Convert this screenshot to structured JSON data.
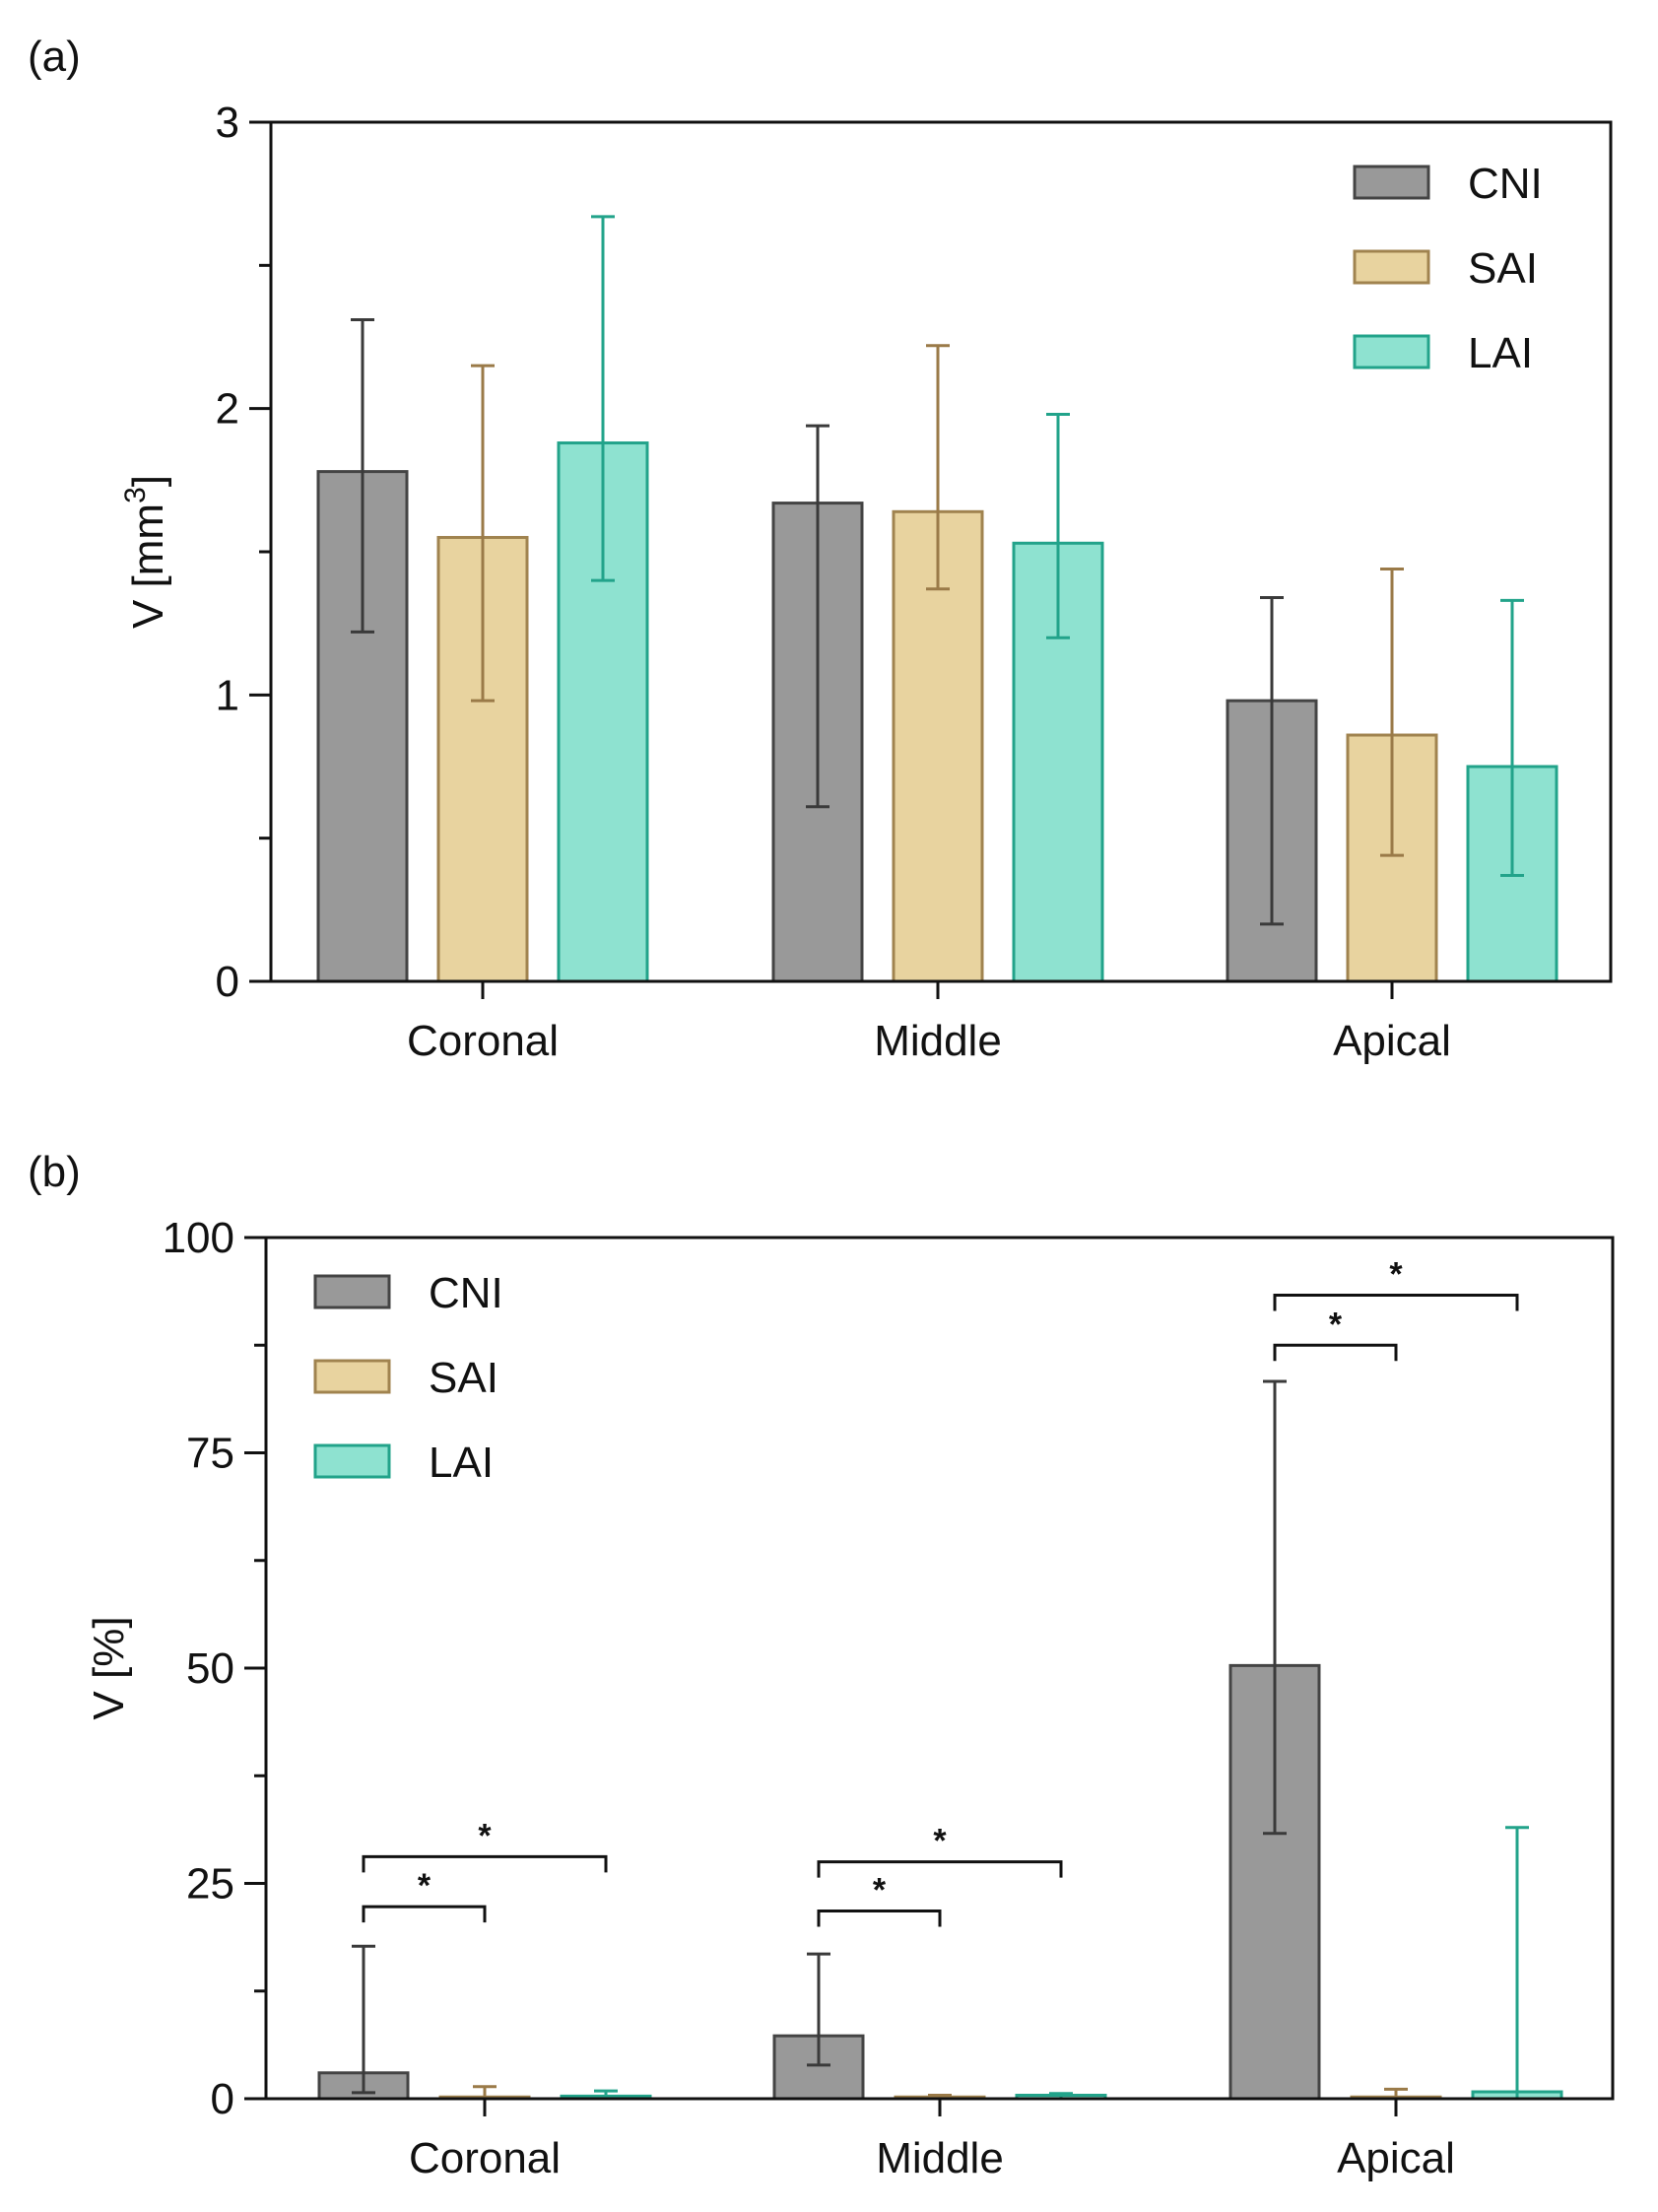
{
  "chart_data": [
    {
      "panel_label": "(a)",
      "type": "bar",
      "categories": [
        "Coronal",
        "Middle",
        "Apical"
      ],
      "ylabel": "V [mm³]",
      "ylabel_base": "V [mm",
      "ylabel_sup": "3",
      "ylabel_end": "]",
      "ylim": [
        0,
        3
      ],
      "yticks": [
        0,
        1,
        2,
        3
      ],
      "ytick_labels": [
        "0",
        "1",
        "2",
        "3"
      ],
      "legend_position": "top-right",
      "series": [
        {
          "name": "CNI",
          "fill": "#999999",
          "stroke": "#444444",
          "err_color": "#3a3a3a",
          "values": [
            1.78,
            1.67,
            0.98
          ],
          "err_low": [
            1.22,
            0.61,
            0.2
          ],
          "err_high": [
            2.31,
            1.94,
            1.34
          ]
        },
        {
          "name": "SAI",
          "fill": "#e8d39f",
          "stroke": "#a0834f",
          "err_color": "#9a7a48",
          "values": [
            1.55,
            1.64,
            0.86
          ],
          "err_low": [
            0.98,
            1.37,
            0.44
          ],
          "err_high": [
            2.15,
            2.22,
            1.44
          ]
        },
        {
          "name": "LAI",
          "fill": "#8ee2d0",
          "stroke": "#22a38a",
          "err_color": "#22a38a",
          "values": [
            1.88,
            1.53,
            0.75
          ],
          "err_low": [
            1.4,
            1.2,
            0.37
          ],
          "err_high": [
            2.67,
            1.98,
            1.33
          ]
        }
      ],
      "significance": []
    },
    {
      "panel_label": "(b)",
      "type": "bar",
      "categories": [
        "Coronal",
        "Middle",
        "Apical"
      ],
      "ylabel": "V [%]",
      "ylim": [
        0,
        100
      ],
      "yticks": [
        0,
        25,
        50,
        75,
        100
      ],
      "ytick_labels": [
        "0",
        "25",
        "50",
        "75",
        "100"
      ],
      "legend_position": "top-left",
      "series": [
        {
          "name": "CNI",
          "fill": "#999999",
          "stroke": "#444444",
          "err_color": "#3a3a3a",
          "values": [
            3.0,
            7.3,
            50.3
          ],
          "err_low": [
            0.7,
            3.9,
            30.8
          ],
          "err_high": [
            17.7,
            16.8,
            83.3
          ]
        },
        {
          "name": "SAI",
          "fill": "#e8d39f",
          "stroke": "#a0834f",
          "err_color": "#9a7a48",
          "values": [
            0.2,
            0.2,
            0.2
          ],
          "err_low": [
            0.0,
            0.0,
            0.0
          ],
          "err_high": [
            1.4,
            0.4,
            1.1
          ]
        },
        {
          "name": "LAI",
          "fill": "#8ee2d0",
          "stroke": "#22a38a",
          "err_color": "#22a38a",
          "values": [
            0.3,
            0.4,
            0.8
          ],
          "err_low": [
            0.0,
            0.0,
            0.0
          ],
          "err_high": [
            0.9,
            0.6,
            31.5
          ]
        }
      ],
      "significance": [
        {
          "category": 0,
          "from_series": 0,
          "to_series": 1,
          "y": 22.3,
          "label": "*"
        },
        {
          "category": 0,
          "from_series": 0,
          "to_series": 2,
          "y": 28.1,
          "label": "*"
        },
        {
          "category": 1,
          "from_series": 0,
          "to_series": 1,
          "y": 21.8,
          "label": "*"
        },
        {
          "category": 1,
          "from_series": 0,
          "to_series": 2,
          "y": 27.5,
          "label": "*"
        },
        {
          "category": 2,
          "from_series": 0,
          "to_series": 1,
          "y": 87.5,
          "label": "*"
        },
        {
          "category": 2,
          "from_series": 0,
          "to_series": 2,
          "y": 93.3,
          "label": "*"
        }
      ]
    }
  ]
}
